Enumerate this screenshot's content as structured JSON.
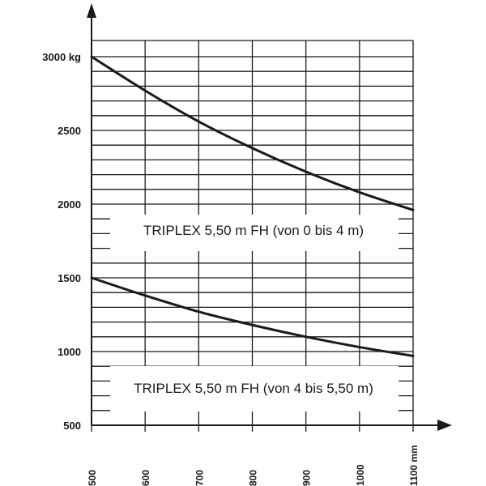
{
  "chart_data": {
    "type": "line",
    "xlabel": "",
    "ylabel": "",
    "xlim": [
      500,
      1100
    ],
    "ylim": [
      500,
      3000
    ],
    "x_ticks": [
      500,
      600,
      700,
      800,
      900,
      1000,
      1100
    ],
    "x_tick_labels": [
      "500",
      "600",
      "700",
      "800",
      "900",
      "1000",
      "1100 mm"
    ],
    "y_ticks": [
      500,
      1000,
      1500,
      2000,
      2500,
      3000
    ],
    "y_tick_labels": [
      "500",
      "1000",
      "1500",
      "2000",
      "2500",
      "3000 kg"
    ],
    "y_minor_step": 100,
    "grid": true,
    "colors": {
      "line": "#1a1a1a",
      "grid": "#1a1a1a",
      "background": "#ffffff"
    },
    "series": [
      {
        "name": "TRIPLEX 5,50 m FH (von 0 bis 4 m)",
        "x": [
          500,
          600,
          700,
          800,
          900,
          1000,
          1100
        ],
        "y": [
          3000,
          2770,
          2560,
          2380,
          2220,
          2080,
          1960
        ]
      },
      {
        "name": "TRIPLEX 5,50 m FH (von 4 bis 5,50 m)",
        "x": [
          500,
          600,
          700,
          800,
          900,
          1000,
          1100
        ],
        "y": [
          1500,
          1380,
          1270,
          1180,
          1100,
          1030,
          970
        ]
      }
    ]
  }
}
